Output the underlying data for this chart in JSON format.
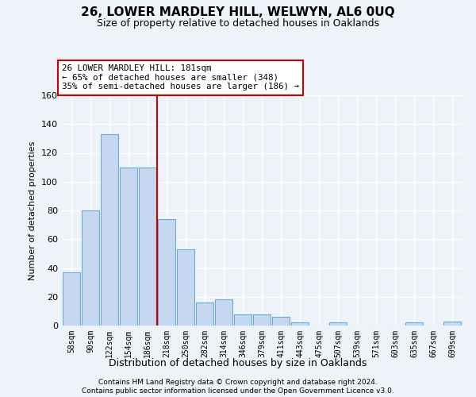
{
  "title": "26, LOWER MARDLEY HILL, WELWYN, AL6 0UQ",
  "subtitle": "Size of property relative to detached houses in Oaklands",
  "xlabel": "Distribution of detached houses by size in Oaklands",
  "ylabel": "Number of detached properties",
  "categories": [
    "58sqm",
    "90sqm",
    "122sqm",
    "154sqm",
    "186sqm",
    "218sqm",
    "250sqm",
    "282sqm",
    "314sqm",
    "346sqm",
    "379sqm",
    "411sqm",
    "443sqm",
    "475sqm",
    "507sqm",
    "539sqm",
    "571sqm",
    "603sqm",
    "635sqm",
    "667sqm",
    "699sqm"
  ],
  "values": [
    37,
    80,
    133,
    110,
    110,
    74,
    53,
    16,
    18,
    8,
    8,
    6,
    2,
    0,
    2,
    0,
    0,
    0,
    2,
    0,
    3
  ],
  "bar_color": "#c5d8f0",
  "bar_edge_color": "#6aaad4",
  "vline_index": 4,
  "vline_color": "#cc0000",
  "annotation_text": "26 LOWER MARDLEY HILL: 181sqm\n← 65% of detached houses are smaller (348)\n35% of semi-detached houses are larger (186) →",
  "annotation_box_color": "#ffffff",
  "annotation_box_edge": "#cc0000",
  "ylim": [
    0,
    160
  ],
  "yticks": [
    0,
    20,
    40,
    60,
    80,
    100,
    120,
    140,
    160
  ],
  "background_color": "#eef2f9",
  "grid_color": "#ffffff",
  "footer1": "Contains HM Land Registry data © Crown copyright and database right 2024.",
  "footer2": "Contains public sector information licensed under the Open Government Licence v3.0.",
  "title_fontsize": 11,
  "subtitle_fontsize": 9,
  "footer_fontsize": 6.5
}
